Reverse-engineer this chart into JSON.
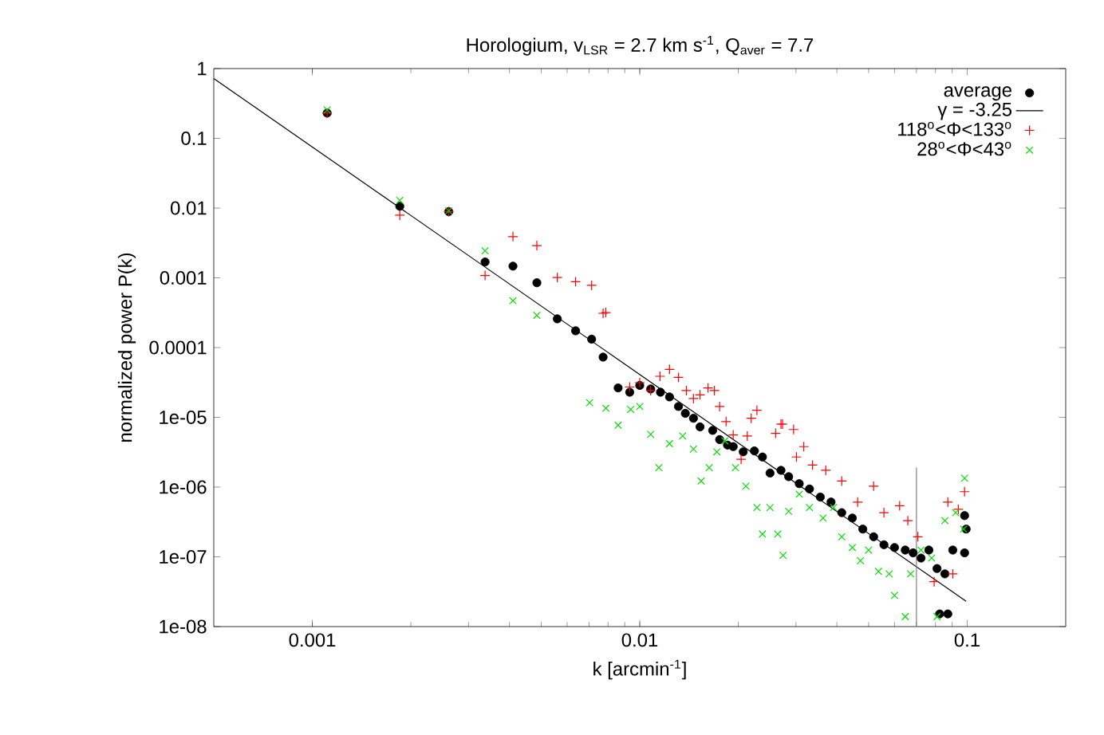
{
  "chart_data": {
    "type": "scatter",
    "title": "Horologium, v$_{LSR}$ = 2.7 km s$^{-1}$, Q$_{aver}$ = 7.7",
    "xlabel": "k [arcmin$^{-1}$]",
    "ylabel": "normalized power P(k)",
    "log": "xy",
    "legend": "top right",
    "xlim": [
      0.0005,
      0.2
    ],
    "xticks": [
      0.001,
      0.01,
      0.1
    ],
    "ylim": [
      1e-08,
      1
    ],
    "yticks": [
      1,
      0.1,
      0.01,
      0.001,
      0.0001,
      {
        "value": 1e-05,
        "label": "1e-05"
      },
      {
        "value": 1e-06,
        "label": "1e-06"
      },
      {
        "value": 1e-07,
        "label": "1e-07"
      },
      {
        "value": 1e-08,
        "label": "1e-08"
      }
    ],
    "series": [
      {
        "name": "average",
        "marker": "circle",
        "color": "#000000",
        "x": [
          0.00111,
          0.00185,
          0.00261,
          0.00337,
          0.0041,
          0.00485,
          0.0056,
          0.00637,
          0.00713,
          0.00773,
          0.00859,
          0.00932,
          0.01,
          0.0108,
          0.01157,
          0.01233,
          0.01313,
          0.01378,
          0.01459,
          0.01528,
          0.0167,
          0.01754,
          0.01854,
          0.0193,
          0.0207,
          0.0224,
          0.0237,
          0.025,
          0.027,
          0.0285,
          0.0307,
          0.033,
          0.0356,
          0.0384,
          0.0414,
          0.0446,
          0.048,
          0.0518,
          0.0557,
          0.06,
          0.0647,
          0.0684,
          0.0723,
          0.0764,
          0.0809,
          0.0824,
          0.0873,
          0.0855,
          0.0904,
          0.0982,
          0.0993,
          0.0982
        ],
        "values": [
          0.23,
          0.0106,
          0.0089,
          0.00169,
          0.00147,
          0.00085,
          0.000258,
          0.000174,
          0.000132,
          7.3e-05,
          2.64e-05,
          2.29e-05,
          2.87e-05,
          2.55e-05,
          2.29e-05,
          1.96e-05,
          1.43e-05,
          1.14e-05,
          9.7e-06,
          7.3e-06,
          6.5e-06,
          4.8e-06,
          4e-06,
          3.8e-06,
          3.2e-06,
          3.3e-06,
          2.7e-06,
          1.59e-06,
          1.74e-06,
          1.41e-06,
          1.12e-06,
          9.4e-07,
          7.2e-07,
          6.1e-07,
          4.3e-07,
          3.6e-07,
          2.5e-07,
          1.94e-07,
          1.49e-07,
          1.36e-07,
          1.25e-07,
          1.14e-07,
          9.6e-08,
          1.25e-07,
          6.8e-08,
          1.52e-08,
          1.52e-08,
          5.7e-08,
          1.25e-07,
          1.14e-07,
          2.5e-07,
          3.9e-07
        ]
      },
      {
        "name": "γ = -3.25",
        "type": "line",
        "marker": "none",
        "line_style": "solid",
        "color": "#000000",
        "x": [
          0.0005,
          0.0993
        ],
        "values": [
          0.72,
          2.3e-08
        ]
      },
      {
        "name": "118$^{o}$<Φ<133$^{o}$",
        "marker": "plus",
        "color": "#ff0000",
        "x": [
          0.00111,
          0.00185,
          0.00261,
          0.00337,
          0.0041,
          0.00485,
          0.0056,
          0.00637,
          0.00713,
          0.00773,
          0.00788,
          0.00932,
          0.01,
          0.0108,
          0.01153,
          0.01233,
          0.01313,
          0.01388,
          0.01459,
          0.01528,
          0.01617,
          0.01691,
          0.01754,
          0.01835,
          0.0193,
          0.0204,
          0.0213,
          0.0219,
          0.0228,
          0.026,
          0.027,
          0.0273,
          0.0295,
          0.0301,
          0.0317,
          0.0337,
          0.037,
          0.0414,
          0.0463,
          0.0518,
          0.0557,
          0.0622,
          0.0659,
          0.0707,
          0.0793,
          0.0873,
          0.0904,
          0.094,
          0.0982
        ],
        "values": [
          0.23,
          0.0079,
          0.0089,
          0.00108,
          0.0039,
          0.0029,
          0.00101,
          0.00088,
          0.00078,
          0.00031,
          0.000318,
          2.72e-05,
          3.14e-05,
          2.42e-05,
          3.88e-05,
          4.87e-05,
          3.74e-05,
          2.42e-05,
          1.86e-05,
          2.1e-05,
          2.64e-05,
          2.42e-05,
          1.43e-05,
          8.7e-06,
          5.6e-06,
          2.5e-06,
          5.4e-06,
          9.7e-06,
          1.26e-05,
          5.9e-06,
          8e-06,
          8e-06,
          6.7e-06,
          2.7e-06,
          3.8e-06,
          2.07e-06,
          1.74e-06,
          1.22e-06,
          6.1e-07,
          1.03e-06,
          4.3e-07,
          5.4e-07,
          3.3e-07,
          1.94e-07,
          4.4e-08,
          6.1e-07,
          5.7e-08,
          4.8e-07,
          8.6e-07
        ]
      },
      {
        "name": "28$^{o}$<Φ<43$^{o}$",
        "marker": "cross",
        "color": "#00e000",
        "x": [
          0.00111,
          0.00185,
          0.00261,
          0.00337,
          0.0041,
          0.00485,
          0.00703,
          0.00788,
          0.00859,
          0.00938,
          0.01,
          0.0108,
          0.01144,
          0.01233,
          0.01352,
          0.01459,
          0.0154,
          0.0163,
          0.0172,
          0.0182,
          0.0196,
          0.0211,
          0.0228,
          0.0237,
          0.025,
          0.0264,
          0.0274,
          0.0285,
          0.0307,
          0.033,
          0.0363,
          0.0391,
          0.0414,
          0.0446,
          0.0472,
          0.05,
          0.0536,
          0.0578,
          0.06,
          0.0647,
          0.0672,
          0.0723,
          0.0779,
          0.0809,
          0.0855,
          0.0922,
          0.0982,
          0.0975
        ],
        "values": [
          0.255,
          0.0129,
          0.0091,
          0.00244,
          0.00047,
          0.00029,
          1.62e-05,
          1.35e-05,
          7.7e-06,
          1.3e-05,
          1.43e-05,
          5.7e-06,
          1.9e-06,
          4.2e-06,
          5.4e-06,
          3.5e-06,
          1.22e-06,
          1.9e-06,
          3.2e-06,
          4.6e-06,
          1.9e-06,
          1.03e-06,
          5.1e-07,
          2.12e-07,
          5.1e-07,
          2.12e-07,
          1.05e-07,
          4.5e-07,
          7.9e-07,
          5.1e-07,
          3.6e-07,
          5.1e-07,
          1.94e-07,
          1.36e-07,
          8.8e-08,
          1.25e-07,
          6.2e-08,
          5.7e-08,
          2.8e-08,
          1.39e-08,
          5.7e-08,
          1.25e-07,
          9.6e-08,
          1.39e-08,
          3.3e-07,
          4.3e-07,
          1.34e-06,
          2.5e-07
        ]
      },
      {
        "type": "line",
        "marker": "none",
        "line_style": "solid",
        "color": "#808080",
        "x": [
          0.07,
          0.07
        ],
        "values": [
          1.9e-06,
          1e-08
        ]
      }
    ]
  }
}
